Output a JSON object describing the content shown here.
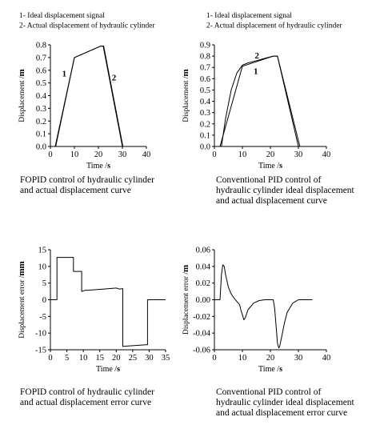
{
  "chart_data": [
    {
      "type": "line",
      "legend": [
        "1-  Ideal displacement signal",
        "2- Actual displacement of hydraulic cylinder"
      ],
      "legend_placement": "top-left above plot",
      "xlabel": "Time",
      "xunit": "s",
      "ylabel": "Displacement",
      "yunit": "m",
      "xlim": [
        0,
        40
      ],
      "ylim": [
        0,
        0.8
      ],
      "x_ticks": [
        "0",
        "10",
        "20",
        "30",
        "40"
      ],
      "y_ticks": [
        "0.0",
        "0.1",
        "0.2",
        "0.3",
        "0.4",
        "0.5",
        "0.6",
        "0.7",
        "0.8"
      ],
      "grid": false,
      "series": [
        {
          "name": "1",
          "x": [
            0,
            2,
            10,
            21,
            22,
            30
          ],
          "y": [
            0,
            0,
            0.7,
            0.79,
            0.79,
            0
          ]
        },
        {
          "name": "2",
          "x": [
            0,
            2.2,
            10,
            21,
            22.2,
            30.2
          ],
          "y": [
            0,
            0,
            0.7,
            0.79,
            0.79,
            0
          ]
        }
      ],
      "curve_labels": [
        {
          "text": "1",
          "x": 5.8,
          "y": 0.55
        },
        {
          "text": "2",
          "x": 26.5,
          "y": 0.52
        }
      ],
      "caption": [
        "FOPID control of hydraulic cylinder",
        "and actual displacement curve"
      ]
    },
    {
      "type": "line",
      "legend": [
        "1-  Ideal displacement signal",
        "2- Actual displacement of hydraulic cylinder"
      ],
      "legend_placement": "top-left above plot",
      "xlabel": "Time",
      "xunit": "s",
      "ylabel": "Displacement",
      "yunit": "m",
      "xlim": [
        0,
        40
      ],
      "ylim": [
        0,
        0.9
      ],
      "x_ticks": [
        "0",
        "10",
        "20",
        "30",
        "40"
      ],
      "y_ticks": [
        "0.0",
        "0.1",
        "0.2",
        "0.3",
        "0.4",
        "0.5",
        "0.6",
        "0.7",
        "0.8",
        "0.9"
      ],
      "grid": false,
      "series": [
        {
          "name": "1",
          "x": [
            0,
            2,
            10,
            21,
            22.5,
            30
          ],
          "y": [
            0,
            0,
            0.71,
            0.8,
            0.8,
            0
          ]
        },
        {
          "name": "2",
          "x": [
            0,
            2.5,
            4,
            6,
            8,
            10,
            12,
            15,
            18,
            21,
            22.5,
            30.5
          ],
          "y": [
            0,
            0,
            0.25,
            0.5,
            0.65,
            0.72,
            0.74,
            0.76,
            0.78,
            0.8,
            0.8,
            0
          ]
        }
      ],
      "curve_labels": [
        {
          "text": "2",
          "x": 15.2,
          "y": 0.78
        },
        {
          "text": "1",
          "x": 14.8,
          "y": 0.64
        }
      ],
      "caption": [
        "Conventional PID control of",
        "hydraulic cylinder ideal displacement",
        "and actual displacement curve"
      ]
    },
    {
      "type": "line",
      "xlabel": "Time",
      "xunit": "s",
      "ylabel": "Displacement error",
      "yunit": "mm",
      "xlim": [
        0,
        35
      ],
      "ylim": [
        -15,
        15
      ],
      "x_ticks": [
        "0",
        "5",
        "10",
        "15",
        "20",
        "25",
        "30",
        "35"
      ],
      "y_ticks": [
        "15",
        "10",
        "5",
        "0",
        "-5",
        "-10",
        "-15"
      ],
      "grid": false,
      "series": [
        {
          "name": "",
          "x": [
            0,
            2,
            2,
            7,
            7,
            9.5,
            9.5,
            10.5,
            11,
            20,
            21,
            21.5,
            22,
            22,
            29,
            29.5,
            29.5,
            35
          ],
          "y": [
            0,
            0,
            12.7,
            12.7,
            8.5,
            8.5,
            2.5,
            2.8,
            2.8,
            3.5,
            3.2,
            3.3,
            3.3,
            -14,
            -13.5,
            -13.5,
            0,
            0
          ]
        }
      ],
      "caption": [
        "FOPID control of hydraulic cylinder",
        "and actual displacement error curve"
      ]
    },
    {
      "type": "line",
      "xlabel": "Time",
      "xunit": "s",
      "ylabel": "Displacement error",
      "yunit": "m",
      "xlim": [
        0,
        40
      ],
      "ylim": [
        -0.06,
        0.06
      ],
      "x_ticks": [
        "0",
        "10",
        "20",
        "30",
        "40"
      ],
      "y_ticks": [
        "0.06",
        "0.04",
        "0.02",
        "0.00",
        "-0.02",
        "-0.04",
        "-0.06"
      ],
      "grid": false,
      "series": [
        {
          "name": "",
          "x": [
            0,
            2,
            2.5,
            3,
            3.5,
            4,
            5,
            6,
            7,
            8,
            9,
            9.5,
            10,
            10.5,
            11,
            12,
            14,
            16,
            18,
            20,
            21,
            21.5,
            22,
            22.5,
            23,
            23.3,
            24,
            25,
            26,
            28,
            30,
            35
          ],
          "y": [
            0,
            0,
            0.03,
            0.042,
            0.04,
            0.03,
            0.015,
            0.007,
            0.002,
            -0.002,
            -0.006,
            -0.013,
            -0.018,
            -0.024,
            -0.022,
            -0.012,
            -0.004,
            -0.001,
            0,
            0,
            0,
            -0.01,
            -0.03,
            -0.052,
            -0.058,
            -0.056,
            -0.045,
            -0.028,
            -0.015,
            -0.004,
            0,
            0
          ]
        }
      ],
      "caption": [
        "Conventional PID control of",
        "hydraulic cylinder ideal displacement",
        "and actual displacement error curve"
      ]
    }
  ]
}
